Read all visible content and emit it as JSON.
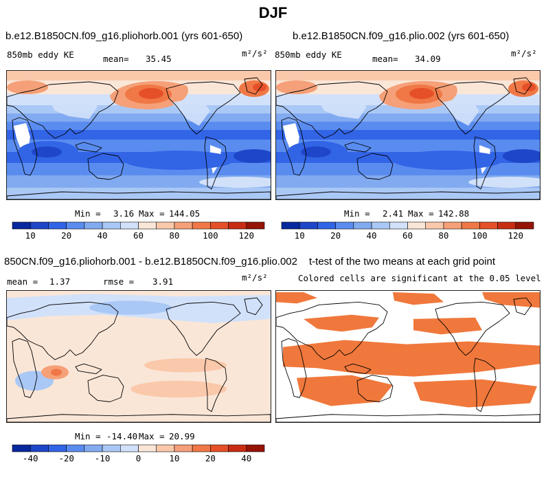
{
  "figure": {
    "title": "DJF",
    "colors": {
      "scale": [
        "#08289e",
        "#1e46c8",
        "#3264e6",
        "#5a8cf0",
        "#82aaf0",
        "#aac8f5",
        "#d2e1fa",
        "#fae6d7",
        "#fac8aa",
        "#f5a078",
        "#f07846",
        "#e65028",
        "#c82d14",
        "#961405"
      ],
      "significant": "#f0783c",
      "coast": "#000000"
    }
  },
  "panels": [
    {
      "id": "a",
      "title": "b.e12.B1850CN.f09_g16.pliohorb.001 (yrs 601-650)",
      "variable": "850mb eddy KE",
      "mean_label": "mean=",
      "mean_value": "35.45",
      "units": "m²/s²",
      "min_label": "Min =",
      "min_value": "3.16",
      "max_label": "Max =",
      "max_value": "144.05"
    },
    {
      "id": "b",
      "title": "b.e12.B1850CN.f09_g16.plio.002 (yrs 601-650)",
      "variable": "850mb eddy KE",
      "mean_label": "mean=",
      "mean_value": "34.09",
      "units": "m²/s²",
      "min_label": "Min =",
      "min_value": "2.41",
      "max_label": "Max =",
      "max_value": "142.88"
    },
    {
      "id": "c",
      "title": "850CN.f09_g16.pliohorb.001 - b.e12.B1850CN.f09_g16.plio.002",
      "mean_label": "mean =",
      "mean_value": "1.37",
      "rmse_label": "rmse =",
      "rmse_value": "3.91",
      "units": "m²/s²",
      "min_label": "Min =",
      "min_value": "-14.40",
      "max_label": "Max =",
      "max_value": "20.99"
    },
    {
      "id": "d",
      "title": "t-test of the two means at each grid point",
      "note": "Colored cells are significant at the 0.05 level"
    }
  ],
  "chart_data": [
    {
      "type": "heatmap",
      "title": "b.e12.B1850CN.f09_g16.pliohorb.001 (yrs 601-650)",
      "variable": "850mb eddy KE",
      "units": "m2/s2",
      "mean": 35.45,
      "min": 3.16,
      "max": 144.05,
      "colorbar": {
        "levels": [
          5,
          10,
          15,
          20,
          30,
          40,
          50,
          60,
          70,
          80,
          90,
          100,
          110,
          120,
          130
        ],
        "tick_labels": [
          "10",
          "20",
          "40",
          "60",
          "80",
          "100",
          "120"
        ]
      }
    },
    {
      "type": "heatmap",
      "title": "b.e12.B1850CN.f09_g16.plio.002 (yrs 601-650)",
      "variable": "850mb eddy KE",
      "units": "m2/s2",
      "mean": 34.09,
      "min": 2.41,
      "max": 142.88,
      "colorbar": {
        "levels": [
          5,
          10,
          15,
          20,
          30,
          40,
          50,
          60,
          70,
          80,
          90,
          100,
          110,
          120,
          130
        ],
        "tick_labels": [
          "10",
          "20",
          "40",
          "60",
          "80",
          "100",
          "120"
        ]
      }
    },
    {
      "type": "heatmap",
      "title": "850CN.f09_g16.pliohorb.001 - b.e12.B1850CN.f09_g16.plio.002",
      "units": "m2/s2",
      "mean": 1.37,
      "rmse": 3.91,
      "min": -14.4,
      "max": 20.99,
      "colorbar": {
        "levels": [
          -50,
          -40,
          -30,
          -20,
          -15,
          -10,
          -5,
          0,
          5,
          10,
          15,
          20,
          30,
          40,
          50
        ],
        "tick_labels": [
          "-40",
          "-20",
          "-10",
          "0",
          "10",
          "20",
          "40"
        ]
      }
    },
    {
      "type": "heatmap",
      "title": "t-test of the two means at each grid point",
      "note": "Colored cells are significant at the 0.05 level",
      "significance_level": 0.05
    }
  ]
}
